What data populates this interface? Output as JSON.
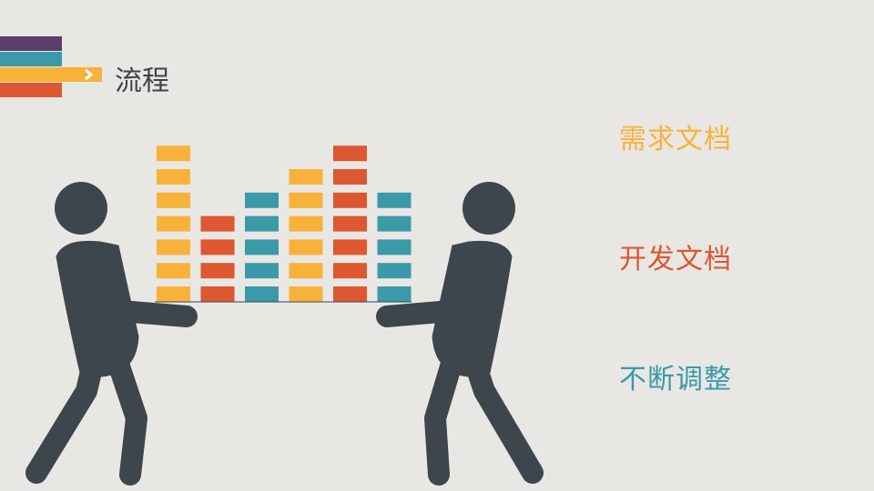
{
  "header": {
    "title": "流程",
    "stripe_colors": [
      "#5a3f6b",
      "#3a9aa7",
      "#f8b23a",
      "#dd5730"
    ],
    "arrow_icon": "chevron-right-icon"
  },
  "items": [
    {
      "label": "需求文档",
      "color": "#f8b23a"
    },
    {
      "label": "开发文档",
      "color": "#dd5730"
    },
    {
      "label": "不断调整",
      "color": "#3a9aa7"
    }
  ],
  "illustration": {
    "people_color": "#3d464d",
    "columns": [
      {
        "color": "#f8b23a",
        "blocks": 7
      },
      {
        "color": "#dd5730",
        "blocks": 4
      },
      {
        "color": "#3a9aa7",
        "blocks": 5
      },
      {
        "color": "#f8b23a",
        "blocks": 6
      },
      {
        "color": "#dd5730",
        "blocks": 7
      },
      {
        "color": "#3a9aa7",
        "blocks": 5
      }
    ]
  }
}
